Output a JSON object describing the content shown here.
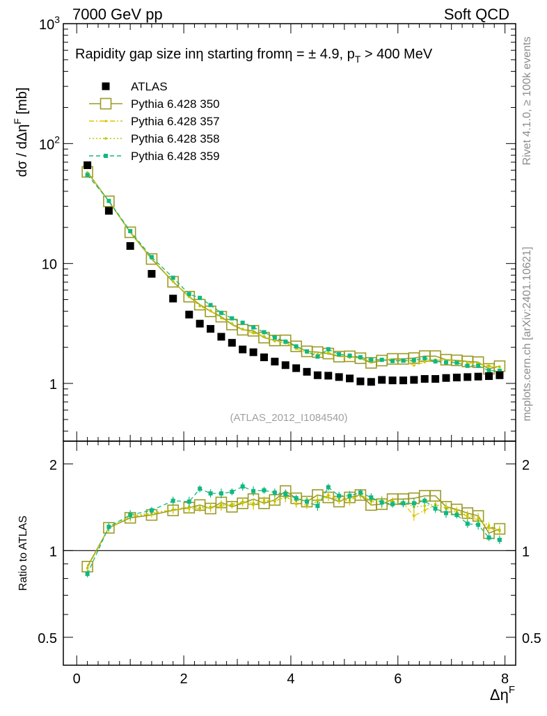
{
  "header": {
    "left": "7000 GeV pp",
    "right": "Soft QCD"
  },
  "side_labels": {
    "rivet": "Rivet 4.1.0, ≥ 100k events",
    "mcplots": "mcplots.cern.ch [arXiv:2401.10621]"
  },
  "chart_data": {
    "type": "scatter",
    "title": "Rapidity gap size inη starting fromη = ± 4.9, p_T > 400 MeV",
    "title_parts": {
      "pre": "Rapidity gap size inη starting fromη = ± 4.9, p",
      "sub": "T",
      "post": " > 400 MeV"
    },
    "ylabel": "dσ / dΔηF [mb]",
    "ylabel_parts": {
      "pre": "dσ / dΔη",
      "sup": "F",
      "post": " [mb]"
    },
    "xlabel": "ΔηF",
    "xlabel_parts": {
      "base": "Δη",
      "sup": "F"
    },
    "ratio_ylabel": "Ratio to ATLAS",
    "watermark": "(ATLAS_2012_I1084540)",
    "xlim": [
      -0.25,
      8.2
    ],
    "ylim_main": [
      0.33,
      1000
    ],
    "ylim_ratio": [
      0.4,
      2.4
    ],
    "yscale": "log",
    "x_ticks": [
      0,
      2,
      4,
      6,
      8
    ],
    "x_tick_labels": [
      "0",
      "2",
      "4",
      "6",
      "8"
    ],
    "y_ticks_main": [
      1,
      10,
      100,
      1000
    ],
    "y_tick_labels_main": [
      "1",
      "10",
      "10^2",
      "10^3"
    ],
    "y_ticks_ratio": [
      0.5,
      1,
      2
    ],
    "y_tick_labels_ratio": [
      "0.5",
      "1",
      "2"
    ],
    "x": [
      0.2,
      0.6,
      1.0,
      1.4,
      1.8,
      2.1,
      2.3,
      2.5,
      2.7,
      2.9,
      3.1,
      3.3,
      3.5,
      3.7,
      3.9,
      4.1,
      4.3,
      4.5,
      4.7,
      4.9,
      5.1,
      5.3,
      5.5,
      5.7,
      5.9,
      6.1,
      6.3,
      6.5,
      6.7,
      6.9,
      7.1,
      7.3,
      7.5,
      7.7,
      7.9
    ],
    "atlas": [
      66,
      27.5,
      14.0,
      8.2,
      5.1,
      3.75,
      3.15,
      2.85,
      2.45,
      2.18,
      1.92,
      1.82,
      1.65,
      1.52,
      1.42,
      1.34,
      1.25,
      1.17,
      1.16,
      1.13,
      1.1,
      1.04,
      1.03,
      1.07,
      1.06,
      1.06,
      1.07,
      1.09,
      1.09,
      1.11,
      1.12,
      1.13,
      1.14,
      1.15,
      1.17
    ],
    "series": [
      {
        "name": "Pythia 6.428 350",
        "color": "#9c9a26",
        "style": "solid",
        "marker": "open-square",
        "ratio": [
          0.88,
          1.2,
          1.3,
          1.33,
          1.38,
          1.41,
          1.44,
          1.4,
          1.47,
          1.42,
          1.46,
          1.51,
          1.46,
          1.5,
          1.61,
          1.52,
          1.48,
          1.56,
          1.53,
          1.48,
          1.53,
          1.56,
          1.44,
          1.45,
          1.51,
          1.51,
          1.52,
          1.55,
          1.55,
          1.42,
          1.39,
          1.35,
          1.32,
          1.15,
          1.19
        ]
      },
      {
        "name": "Pythia 6.428 357",
        "color": "#e0c400",
        "style": "dashdot",
        "marker": "small-dot",
        "ratio": [
          0.87,
          1.2,
          1.31,
          1.34,
          1.39,
          1.4,
          1.4,
          1.41,
          1.43,
          1.44,
          1.47,
          1.44,
          1.5,
          1.48,
          1.55,
          1.45,
          1.44,
          1.48,
          1.56,
          1.5,
          1.49,
          1.57,
          1.48,
          1.46,
          1.49,
          1.46,
          1.32,
          1.38,
          1.44,
          1.41,
          1.38,
          1.31,
          1.28,
          1.2,
          1.17
        ]
      },
      {
        "name": "Pythia 6.428 358",
        "color": "#b8c800",
        "style": "dotted",
        "marker": "small-dot",
        "ratio": [
          0.87,
          1.2,
          1.32,
          1.35,
          1.39,
          1.42,
          1.41,
          1.42,
          1.44,
          1.45,
          1.48,
          1.46,
          1.48,
          1.49,
          1.53,
          1.49,
          1.5,
          1.5,
          1.53,
          1.51,
          1.52,
          1.55,
          1.5,
          1.49,
          1.48,
          1.47,
          1.42,
          1.43,
          1.45,
          1.4,
          1.36,
          1.33,
          1.3,
          1.22,
          1.18
        ]
      },
      {
        "name": "Pythia 6.428 359",
        "color": "#10b880",
        "style": "dashed",
        "marker": "filled-square",
        "ratio": [
          0.83,
          1.21,
          1.33,
          1.38,
          1.49,
          1.48,
          1.64,
          1.58,
          1.58,
          1.6,
          1.67,
          1.61,
          1.62,
          1.59,
          1.57,
          1.52,
          1.48,
          1.43,
          1.66,
          1.55,
          1.55,
          1.59,
          1.53,
          1.47,
          1.45,
          1.46,
          1.46,
          1.49,
          1.4,
          1.35,
          1.33,
          1.24,
          1.23,
          1.11,
          1.09
        ]
      }
    ]
  }
}
